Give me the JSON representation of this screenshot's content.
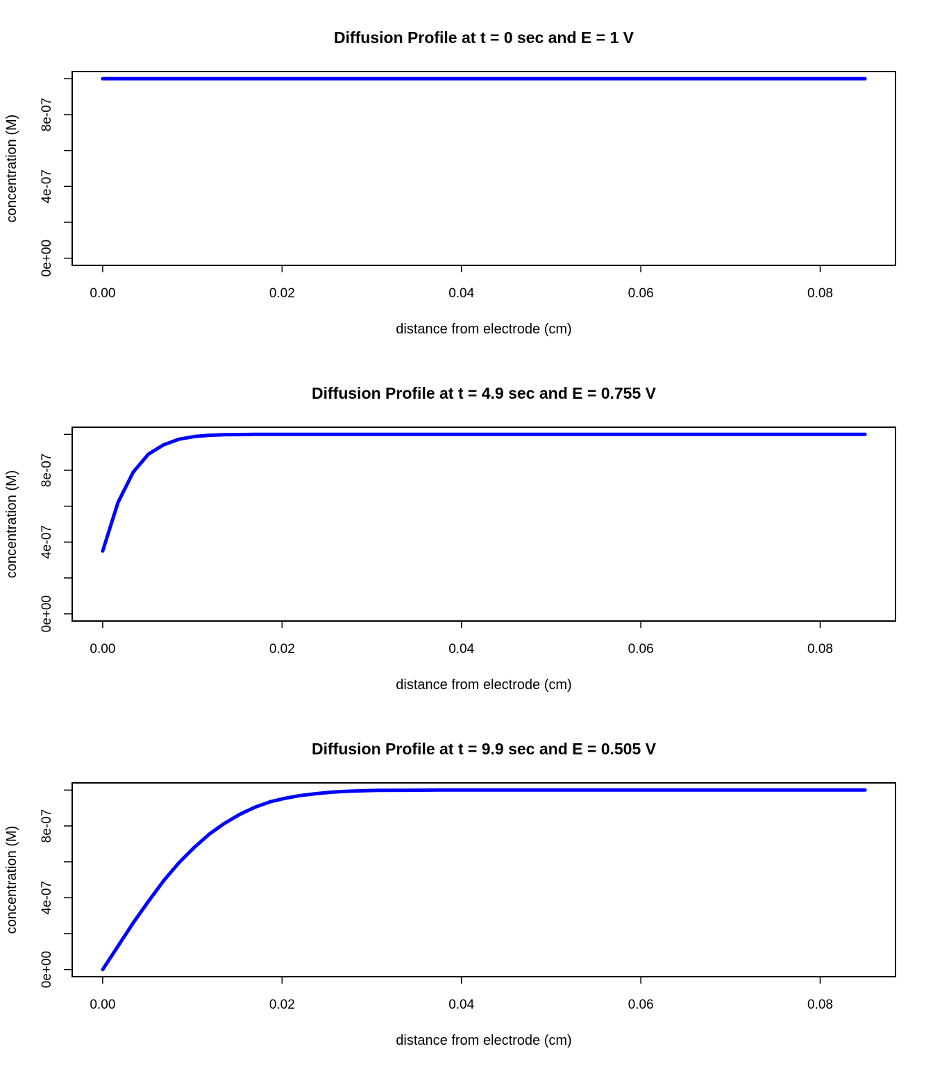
{
  "colors": {
    "series": "#0000ff",
    "axis": "#000000",
    "background": "#ffffff"
  },
  "chart_data": [
    {
      "type": "line",
      "title": "Diffusion Profile at t = 0 sec and E = 1 V",
      "xlabel": "distance from electrode (cm)",
      "ylabel": "concentration (M)",
      "xlim": [
        -0.0034,
        0.0884
      ],
      "ylim": [
        -4e-08,
        1.04e-06
      ],
      "x_ticks": [
        0,
        0.02,
        0.04,
        0.06,
        0.08
      ],
      "x_tick_labels": [
        "0.00",
        "0.02",
        "0.04",
        "0.06",
        "0.08"
      ],
      "y_ticks": [
        0,
        2e-07,
        4e-07,
        6e-07,
        8e-07,
        1e-06
      ],
      "y_tick_labels": [
        "0e+00",
        "",
        "4e-07",
        "",
        "8e-07",
        ""
      ],
      "grid": false,
      "series": [
        {
          "x": [
            0,
            0.085
          ],
          "y": [
            1e-06,
            1e-06
          ]
        }
      ]
    },
    {
      "type": "line",
      "title": "Diffusion Profile at t = 4.9 sec and E = 0.755 V",
      "xlabel": "distance from electrode (cm)",
      "ylabel": "concentration (M)",
      "xlim": [
        -0.0034,
        0.0884
      ],
      "ylim": [
        -4e-08,
        1.04e-06
      ],
      "x_ticks": [
        0,
        0.02,
        0.04,
        0.06,
        0.08
      ],
      "x_tick_labels": [
        "0.00",
        "0.02",
        "0.04",
        "0.06",
        "0.08"
      ],
      "y_ticks": [
        0,
        2e-07,
        4e-07,
        6e-07,
        8e-07,
        1e-06
      ],
      "y_tick_labels": [
        "0e+00",
        "",
        "4e-07",
        "",
        "8e-07",
        ""
      ],
      "grid": false,
      "series": [
        {
          "x": [
            0,
            0.0017,
            0.0034,
            0.0051,
            0.0068,
            0.0085,
            0.0102,
            0.0119,
            0.0136,
            0.0153,
            0.017,
            0.0204,
            0.085
          ],
          "y": [
            3.5e-07,
            6.2e-07,
            7.9e-07,
            8.9e-07,
            9.42e-07,
            9.73e-07,
            9.88e-07,
            9.95e-07,
            9.98e-07,
            9.99e-07,
            1e-06,
            1e-06,
            1e-06
          ]
        }
      ]
    },
    {
      "type": "line",
      "title": "Diffusion Profile at t = 9.9 sec and E = 0.505 V",
      "xlabel": "distance from electrode (cm)",
      "ylabel": "concentration (M)",
      "xlim": [
        -0.0034,
        0.0884
      ],
      "ylim": [
        -4e-08,
        1.04e-06
      ],
      "x_ticks": [
        0,
        0.02,
        0.04,
        0.06,
        0.08
      ],
      "x_tick_labels": [
        "0.00",
        "0.02",
        "0.04",
        "0.06",
        "0.08"
      ],
      "y_ticks": [
        0,
        2e-07,
        4e-07,
        6e-07,
        8e-07,
        1e-06
      ],
      "y_tick_labels": [
        "0e+00",
        "",
        "4e-07",
        "",
        "8e-07",
        ""
      ],
      "grid": false,
      "series": [
        {
          "x": [
            0,
            0.0017,
            0.0034,
            0.0051,
            0.0068,
            0.0085,
            0.0102,
            0.0119,
            0.0136,
            0.0153,
            0.017,
            0.0187,
            0.0204,
            0.0221,
            0.0238,
            0.0255,
            0.0272,
            0.0289,
            0.0306,
            0.034,
            0.0374,
            0.085
          ],
          "y": [
            0.0,
            1.3e-07,
            2.6e-07,
            3.8e-07,
            4.95e-07,
            5.95e-07,
            6.8e-07,
            7.55e-07,
            8.15e-07,
            8.65e-07,
            9.05e-07,
            9.35e-07,
            9.55e-07,
            9.7e-07,
            9.8e-07,
            9.88e-07,
            9.93e-07,
            9.96e-07,
            9.98e-07,
            9.99e-07,
            1e-06,
            1e-06
          ]
        }
      ]
    }
  ]
}
